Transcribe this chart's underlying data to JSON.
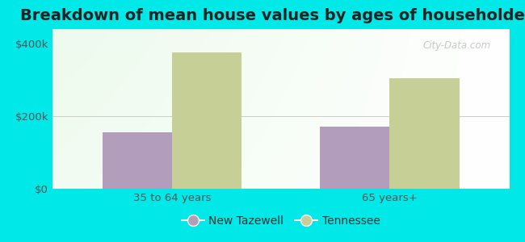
{
  "title": "Breakdown of mean house values by ages of householders",
  "categories": [
    "35 to 64 years",
    "65 years+"
  ],
  "series": {
    "New Tazewell": [
      155000,
      172000
    ],
    "Tennessee": [
      375000,
      305000
    ]
  },
  "colors": {
    "New Tazewell": "#b39dbd",
    "Tennessee": "#c5cf96"
  },
  "ylim": [
    0,
    440000
  ],
  "yticks": [
    0,
    200000,
    400000
  ],
  "ytick_labels": [
    "$0",
    "$200k",
    "$400k"
  ],
  "background_color": "#00e8e8",
  "bar_width": 0.32,
  "title_fontsize": 14,
  "tick_fontsize": 9.5,
  "legend_fontsize": 10,
  "watermark": "City-Data.com"
}
